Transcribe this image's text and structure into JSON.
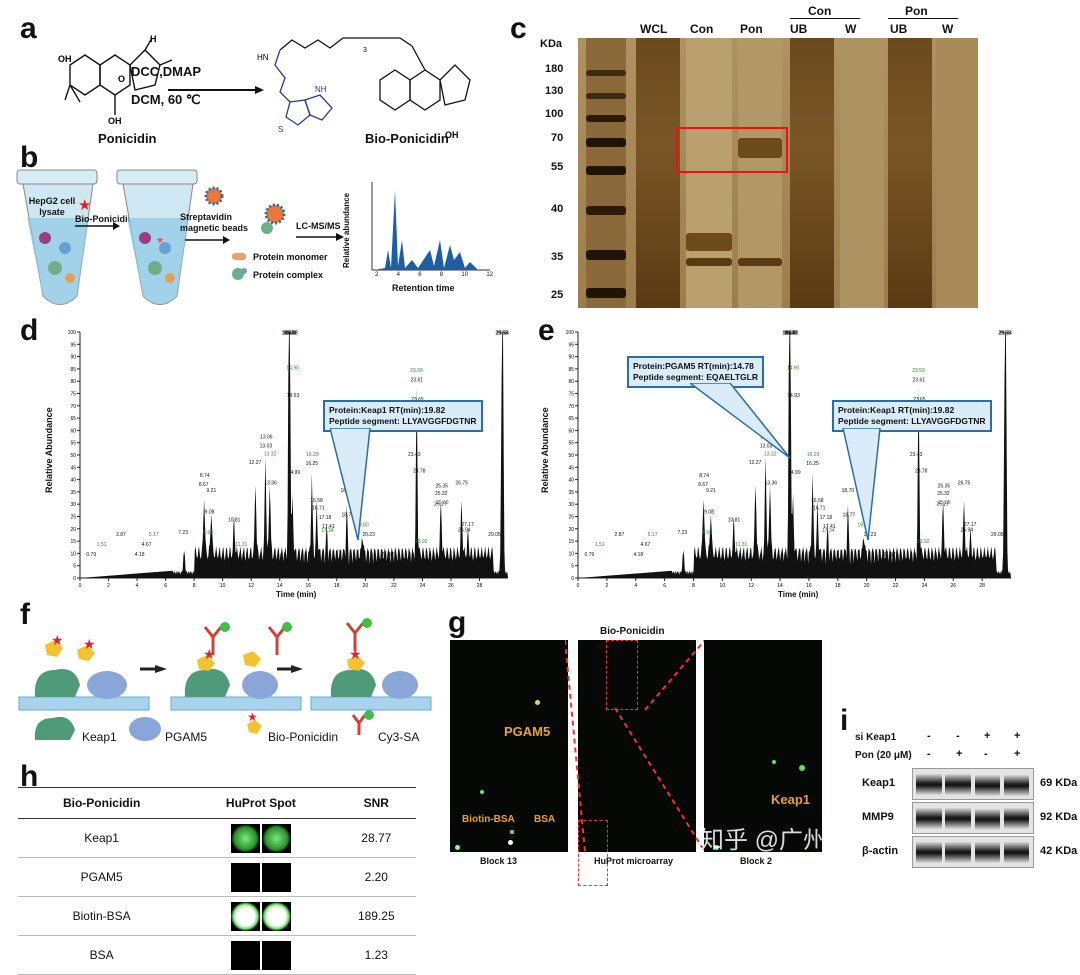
{
  "panels": {
    "a": "a",
    "b": "b",
    "c": "c",
    "d": "d",
    "e": "e",
    "f": "f",
    "g": "g",
    "h": "h",
    "i": "i"
  },
  "a": {
    "left_compound": "Ponicidin",
    "right_compound": "Bio-Ponicidin",
    "reagents_top": "DCC,DMAP",
    "reagents_bottom": "DCM, 60 ℃",
    "atoms": {
      "oh1": "OH",
      "oh2": "OH",
      "h": "H",
      "o": "O",
      "nh": "HN",
      "hn": "NH",
      "s": "S",
      "n3": "3"
    }
  },
  "b": {
    "tube1_label": "HepG2 cell lysate",
    "probe": "Bio-Ponicidin",
    "beads": "Streptavidin magnetic beads",
    "ms": "LC-MS/MS",
    "monomer": "Protein monomer",
    "complex": "Protein complex",
    "chart_ylabel": "Relative abundance",
    "chart_xlabel": "Retention time",
    "chart_xticks": [
      "2",
      "4",
      "6",
      "8",
      "10",
      "12"
    ]
  },
  "c": {
    "kda": "KDa",
    "markers": [
      "180",
      "130",
      "100",
      "70",
      "55",
      "40",
      "35",
      "25"
    ],
    "lanes": [
      "WCL",
      "Con",
      "Pon",
      "UB",
      "W",
      "UB",
      "W"
    ],
    "groups": [
      "Con",
      "Pon"
    ]
  },
  "d": {
    "ylabel": "Relative Abundance",
    "xlabel": "Time (min)",
    "yticks": [
      "100",
      "95",
      "90",
      "85",
      "80",
      "75",
      "70",
      "65",
      "60",
      "55",
      "50",
      "45",
      "40",
      "35",
      "30",
      "25",
      "20",
      "15",
      "10",
      "5",
      "0"
    ],
    "xticks": [
      "0",
      "2",
      "4",
      "6",
      "8",
      "10",
      "12",
      "14",
      "16",
      "18",
      "20",
      "22",
      "24",
      "26",
      "28"
    ],
    "callout_line1": "Protein:Keap1  RT(min):19.82",
    "callout_line2": "Peptide segment: LLYAVGGFDGTNR"
  },
  "e": {
    "callout1_line1": "Protein:PGAM5  RT(min):14.78",
    "callout1_line2": "Peptide segment: EQAELTGLR",
    "callout2_line1": "Protein:Keap1  RT(min):19.82",
    "callout2_line2": "Peptide segment: LLYAVGGFDGTNR"
  },
  "peak_labels": [
    "0.79",
    "1.51",
    "2.87",
    "4.18",
    "4.67",
    "5.17",
    "7.23",
    "8.67",
    "8.74",
    "8.98",
    "9.08",
    "9.21",
    "10.81",
    "11.31",
    "12.27",
    "13.03",
    "13.06",
    "13.32",
    "13.36",
    "14.70",
    "14.64",
    "14.73",
    "14.57",
    "14.77",
    "14.83",
    "14.90",
    "14.93",
    "14.99",
    "16.25",
    "16.29",
    "16.58",
    "16.71",
    "17.18",
    "17.34",
    "17.41",
    "18.70",
    "18.77",
    "19.80",
    "20.23",
    "21.57",
    "23.61",
    "23.59",
    "23.65",
    "23.78",
    "23.43",
    "23.92",
    "25.32",
    "25.35",
    "25.27",
    "25.39",
    "26.75",
    "26.94",
    "27.17",
    "29.64",
    "29.58",
    "29.55",
    "29.05"
  ],
  "f": {
    "keap1": "Keap1",
    "pgam5": "PGAM5",
    "probe": "Bio-Ponicidin",
    "cy3": "Cy3-SA"
  },
  "g": {
    "title": "Bio-Ponicidin",
    "pgam5": "PGAM5",
    "keap1": "Keap1",
    "biotin_bsa": "Biotin-BSA",
    "bsa": "BSA",
    "block13": "Block 13",
    "microarray": "HuProt microarray",
    "block2": "Block 2",
    "watermark": "知乎 @广州基云生物科技"
  },
  "h": {
    "headers": [
      "Bio-Ponicidin",
      "HuProt Spot",
      "SNR"
    ],
    "rows": [
      {
        "name": "Keap1",
        "snr": "28.77"
      },
      {
        "name": "PGAM5",
        "snr": "2.20"
      },
      {
        "name": "Biotin-BSA",
        "snr": "189.25"
      },
      {
        "name": "BSA",
        "snr": "1.23"
      }
    ]
  },
  "i": {
    "rows": [
      {
        "label": "si Keap1",
        "values": [
          "-",
          "-",
          "+",
          "+"
        ]
      },
      {
        "label": "Pon (20 μM)",
        "values": [
          "-",
          "+",
          "-",
          "+"
        ]
      }
    ],
    "blots": [
      {
        "name": "Keap1",
        "size": "69 KDa"
      },
      {
        "name": "MMP9",
        "size": "92 KDa"
      },
      {
        "name": "β-actin",
        "size": "42 KDa"
      }
    ]
  }
}
